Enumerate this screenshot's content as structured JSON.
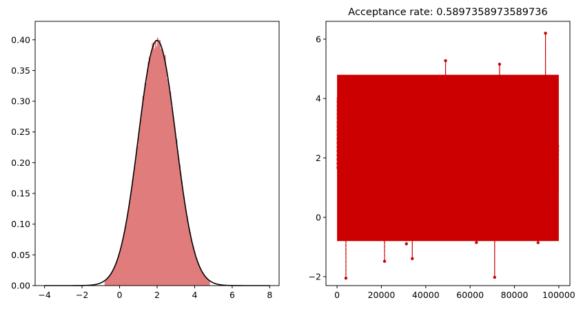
{
  "chart_data": [
    {
      "type": "histogram",
      "title": "",
      "xlabel": "",
      "ylabel": "",
      "xlim": [
        -4.5,
        8.5
      ],
      "ylim": [
        0,
        0.43
      ],
      "x_ticks": [
        -4,
        -2,
        0,
        2,
        4,
        6,
        8
      ],
      "x_tick_labels": [
        "−4",
        "−2",
        "0",
        "2",
        "4",
        "6",
        "8"
      ],
      "y_ticks": [
        0.0,
        0.05,
        0.1,
        0.15,
        0.2,
        0.25,
        0.3,
        0.35,
        0.4
      ],
      "y_tick_labels": [
        "0.00",
        "0.05",
        "0.10",
        "0.15",
        "0.20",
        "0.25",
        "0.30",
        "0.35",
        "0.40"
      ],
      "histogram": {
        "bar_color": "#e07c7c",
        "density": true,
        "bin_count": 100,
        "bin_range": [
          -0.8,
          4.8
        ],
        "peak_density": 0.41
      },
      "series": [
        {
          "type": "line",
          "color": "#000000",
          "distribution": "normal",
          "mean": 2.0,
          "std": 1.0,
          "x_range": [
            -4,
            8
          ],
          "peak_value": 0.399
        }
      ],
      "grid": false,
      "legend": "none"
    },
    {
      "type": "line",
      "title": "Acceptance rate: 0.5897358973589736",
      "xlabel": "",
      "ylabel": "",
      "xlim": [
        -5000,
        105000
      ],
      "ylim": [
        -2.3,
        6.6
      ],
      "x_ticks": [
        0,
        20000,
        40000,
        60000,
        80000,
        100000
      ],
      "x_tick_labels": [
        "0",
        "20000",
        "40000",
        "60000",
        "80000",
        "100000"
      ],
      "y_ticks": [
        -2,
        0,
        2,
        4,
        6
      ],
      "y_tick_labels": [
        "−2",
        "0",
        "2",
        "4",
        "6"
      ],
      "series": [
        {
          "type": "trace",
          "color": "#cc0000",
          "marker": "dot",
          "linestyle": "dashed",
          "n_samples": 100000,
          "distribution": "normal",
          "mean": 2.0,
          "std": 1.0,
          "dense_band": [
            -0.8,
            4.8
          ],
          "observed_min": -2.05,
          "observed_max": 6.2
        }
      ],
      "grid": false,
      "legend": "none"
    }
  ]
}
